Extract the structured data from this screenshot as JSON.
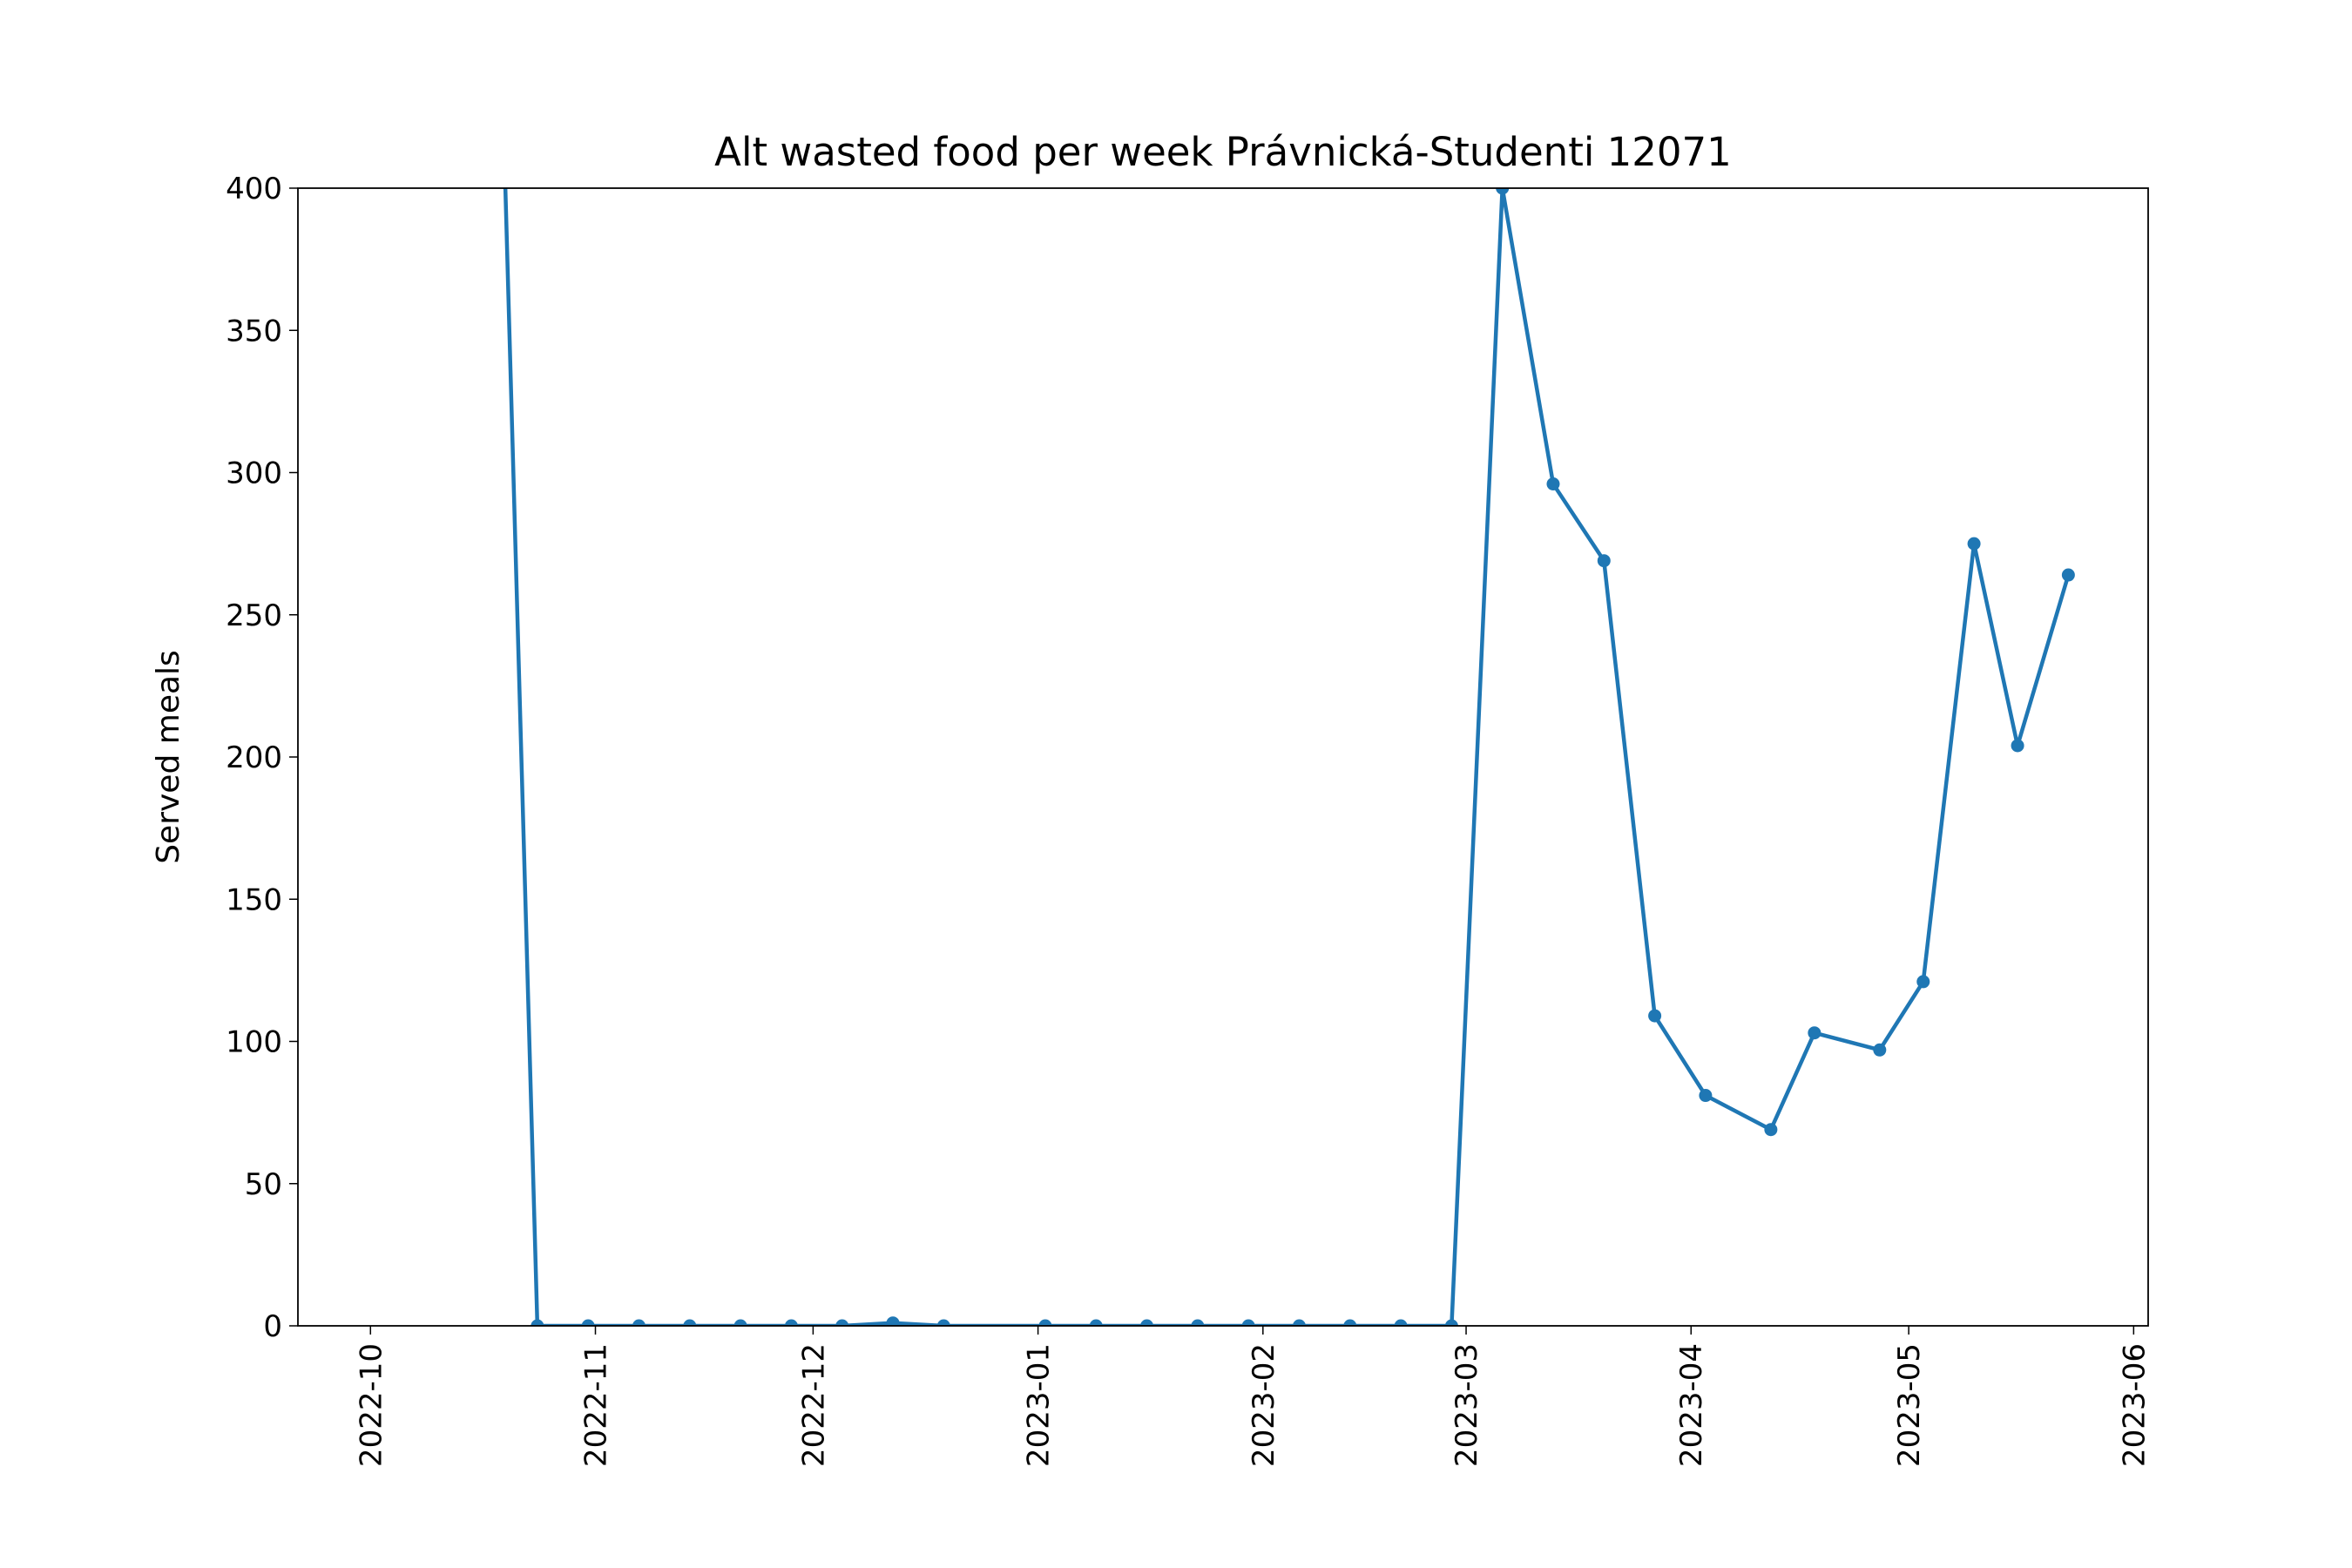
{
  "chart_data": {
    "type": "line",
    "title": "Alt wasted food per week Právnická-Studenti 12071",
    "ylabel": "Served meals",
    "color": "#1f77b4",
    "x": [
      "2022-10-17",
      "2022-10-24",
      "2022-10-31",
      "2022-11-07",
      "2022-11-14",
      "2022-11-21",
      "2022-11-28",
      "2022-12-05",
      "2022-12-12",
      "2022-12-19",
      "2023-01-02",
      "2023-01-09",
      "2023-01-16",
      "2023-01-23",
      "2023-01-30",
      "2023-02-06",
      "2023-02-13",
      "2023-02-20",
      "2023-02-27",
      "2023-03-06",
      "2023-03-13",
      "2023-03-20",
      "2023-03-27",
      "2023-04-03",
      "2023-04-12",
      "2023-04-18",
      "2023-04-27",
      "2023-05-03",
      "2023-05-10",
      "2023-05-16",
      "2023-05-23"
    ],
    "values": [
      635,
      0,
      0,
      0,
      0,
      0,
      0,
      0,
      1,
      0,
      0,
      0,
      0,
      0,
      0,
      0,
      0,
      0,
      0,
      400,
      296,
      269,
      109,
      81,
      69,
      103,
      97,
      121,
      275,
      204,
      264
    ],
    "xlim": [
      "2022-09-21",
      "2023-06-03"
    ],
    "xticks": [
      "2022-10",
      "2022-11",
      "2022-12",
      "2023-01",
      "2023-02",
      "2023-03",
      "2023-04",
      "2023-05",
      "2023-06"
    ],
    "ylim": [
      0,
      400
    ],
    "yticks": [
      0,
      50,
      100,
      150,
      200,
      250,
      300,
      350,
      400
    ]
  }
}
